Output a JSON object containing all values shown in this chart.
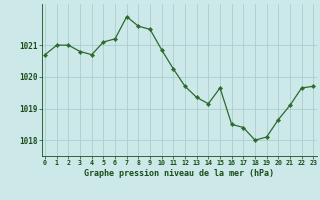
{
  "x": [
    0,
    1,
    2,
    3,
    4,
    5,
    6,
    7,
    8,
    9,
    10,
    11,
    12,
    13,
    14,
    15,
    16,
    17,
    18,
    19,
    20,
    21,
    22,
    23
  ],
  "y": [
    1020.7,
    1021.0,
    1021.0,
    1020.8,
    1020.7,
    1021.1,
    1021.2,
    1021.9,
    1021.6,
    1021.5,
    1020.85,
    1020.25,
    1019.7,
    1019.35,
    1019.15,
    1019.65,
    1018.5,
    1018.4,
    1018.0,
    1018.1,
    1018.65,
    1019.1,
    1019.65,
    1019.7
  ],
  "line_color": "#2d6a2d",
  "marker_color": "#2d6a2d",
  "bg_color": "#cce8e8",
  "grid_color": "#aacece",
  "xlabel": "Graphe pression niveau de la mer (hPa)",
  "xlabel_color": "#1a4d1a",
  "tick_color": "#1a4d1a",
  "ylim": [
    1017.5,
    1022.3
  ],
  "yticks": [
    1018,
    1019,
    1020,
    1021
  ],
  "figsize": [
    3.2,
    2.0
  ],
  "dpi": 100
}
